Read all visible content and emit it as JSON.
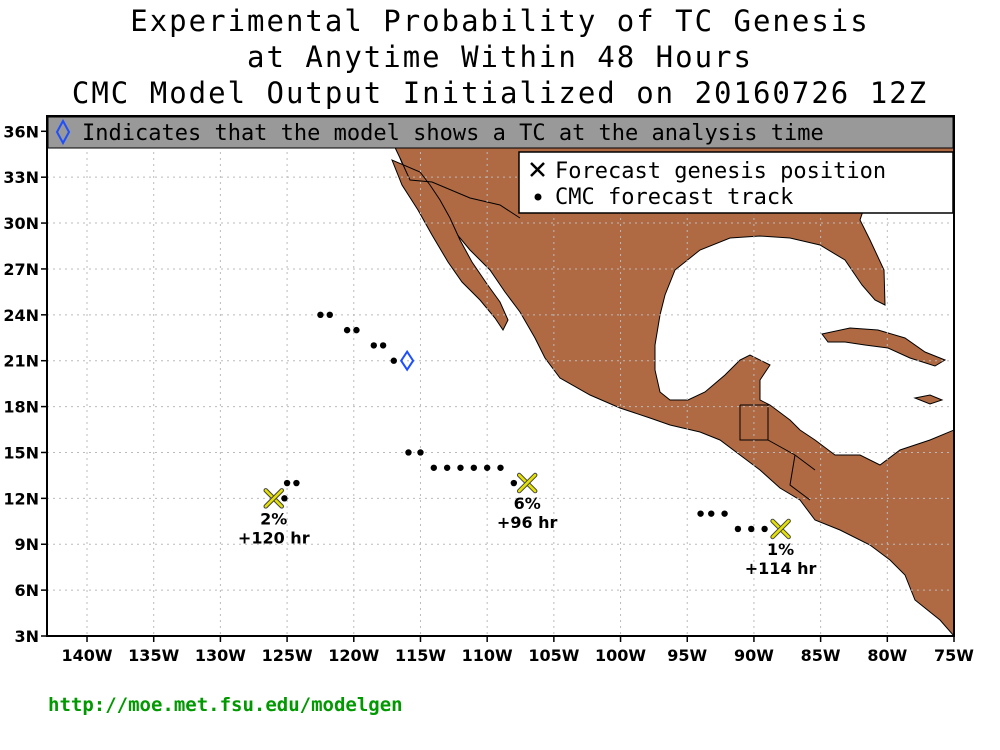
{
  "title": {
    "line1": "Experimental Probability of TC Genesis",
    "line2": "at Anytime Within 48 Hours",
    "line3": "CMC Model Output Initialized on 20160726 12Z"
  },
  "banner": {
    "text": "Indicates that the model shows a TC at the analysis time",
    "icon": "diamond-icon"
  },
  "legend": {
    "genesis_label": "Forecast genesis position",
    "track_label": "CMC forecast track"
  },
  "footer_url": "http://moe.met.fsu.edu/modelgen",
  "colors": {
    "land": "#b06a43",
    "banner": "#999999",
    "diamond": "#1e4fff",
    "genesis_marker": "#e6e200",
    "url": "#009900"
  },
  "map": {
    "lon_range": [
      -143,
      -75
    ],
    "lat_range": [
      3,
      37
    ],
    "lon_ticks": [
      {
        "value": -140,
        "label": "140W"
      },
      {
        "value": -135,
        "label": "135W"
      },
      {
        "value": -130,
        "label": "130W"
      },
      {
        "value": -125,
        "label": "125W"
      },
      {
        "value": -120,
        "label": "120W"
      },
      {
        "value": -115,
        "label": "115W"
      },
      {
        "value": -110,
        "label": "110W"
      },
      {
        "value": -105,
        "label": "105W"
      },
      {
        "value": -100,
        "label": "100W"
      },
      {
        "value": -95,
        "label": "95W"
      },
      {
        "value": -90,
        "label": "90W"
      },
      {
        "value": -85,
        "label": "85W"
      },
      {
        "value": -80,
        "label": "80W"
      },
      {
        "value": -75,
        "label": "75W"
      }
    ],
    "lat_ticks": [
      {
        "value": 3,
        "label": "3N"
      },
      {
        "value": 6,
        "label": "6N"
      },
      {
        "value": 9,
        "label": "9N"
      },
      {
        "value": 12,
        "label": "12N"
      },
      {
        "value": 15,
        "label": "15N"
      },
      {
        "value": 18,
        "label": "18N"
      },
      {
        "value": 21,
        "label": "21N"
      },
      {
        "value": 24,
        "label": "24N"
      },
      {
        "value": 27,
        "label": "27N"
      },
      {
        "value": 30,
        "label": "30N"
      },
      {
        "value": 33,
        "label": "33N"
      },
      {
        "value": 36,
        "label": "36N"
      }
    ],
    "analysis_tc": {
      "lon": -116,
      "lat": 21
    },
    "tracks": [
      {
        "name": "track-west",
        "points": [
          [
            -122.5,
            24
          ],
          [
            -121.8,
            24
          ],
          [
            -120.5,
            23
          ],
          [
            -119.8,
            23
          ],
          [
            -118.5,
            22
          ],
          [
            -117.8,
            22
          ],
          [
            -117,
            21
          ]
        ]
      },
      {
        "name": "track-far-west",
        "points": [
          [
            -124.3,
            13
          ],
          [
            -125,
            13
          ],
          [
            -125.2,
            12
          ]
        ]
      },
      {
        "name": "track-central",
        "points": [
          [
            -115.9,
            15
          ],
          [
            -115,
            15
          ],
          [
            -114,
            14
          ],
          [
            -113,
            14
          ],
          [
            -112,
            14
          ],
          [
            -111,
            14
          ],
          [
            -110,
            14
          ],
          [
            -109,
            14
          ],
          [
            -108,
            13
          ]
        ]
      },
      {
        "name": "track-east",
        "points": [
          [
            -94,
            11
          ],
          [
            -93.2,
            11
          ],
          [
            -92.2,
            11
          ],
          [
            -91.2,
            10
          ],
          [
            -90.2,
            10
          ],
          [
            -89.2,
            10
          ]
        ]
      }
    ],
    "genesis": [
      {
        "lon": -126,
        "lat": 12,
        "prob": "2%",
        "hour": "+120 hr"
      },
      {
        "lon": -107,
        "lat": 13,
        "prob": "6%",
        "hour": "+96 hr"
      },
      {
        "lon": -88,
        "lat": 10,
        "prob": "1%",
        "hour": "+114 hr"
      }
    ]
  }
}
